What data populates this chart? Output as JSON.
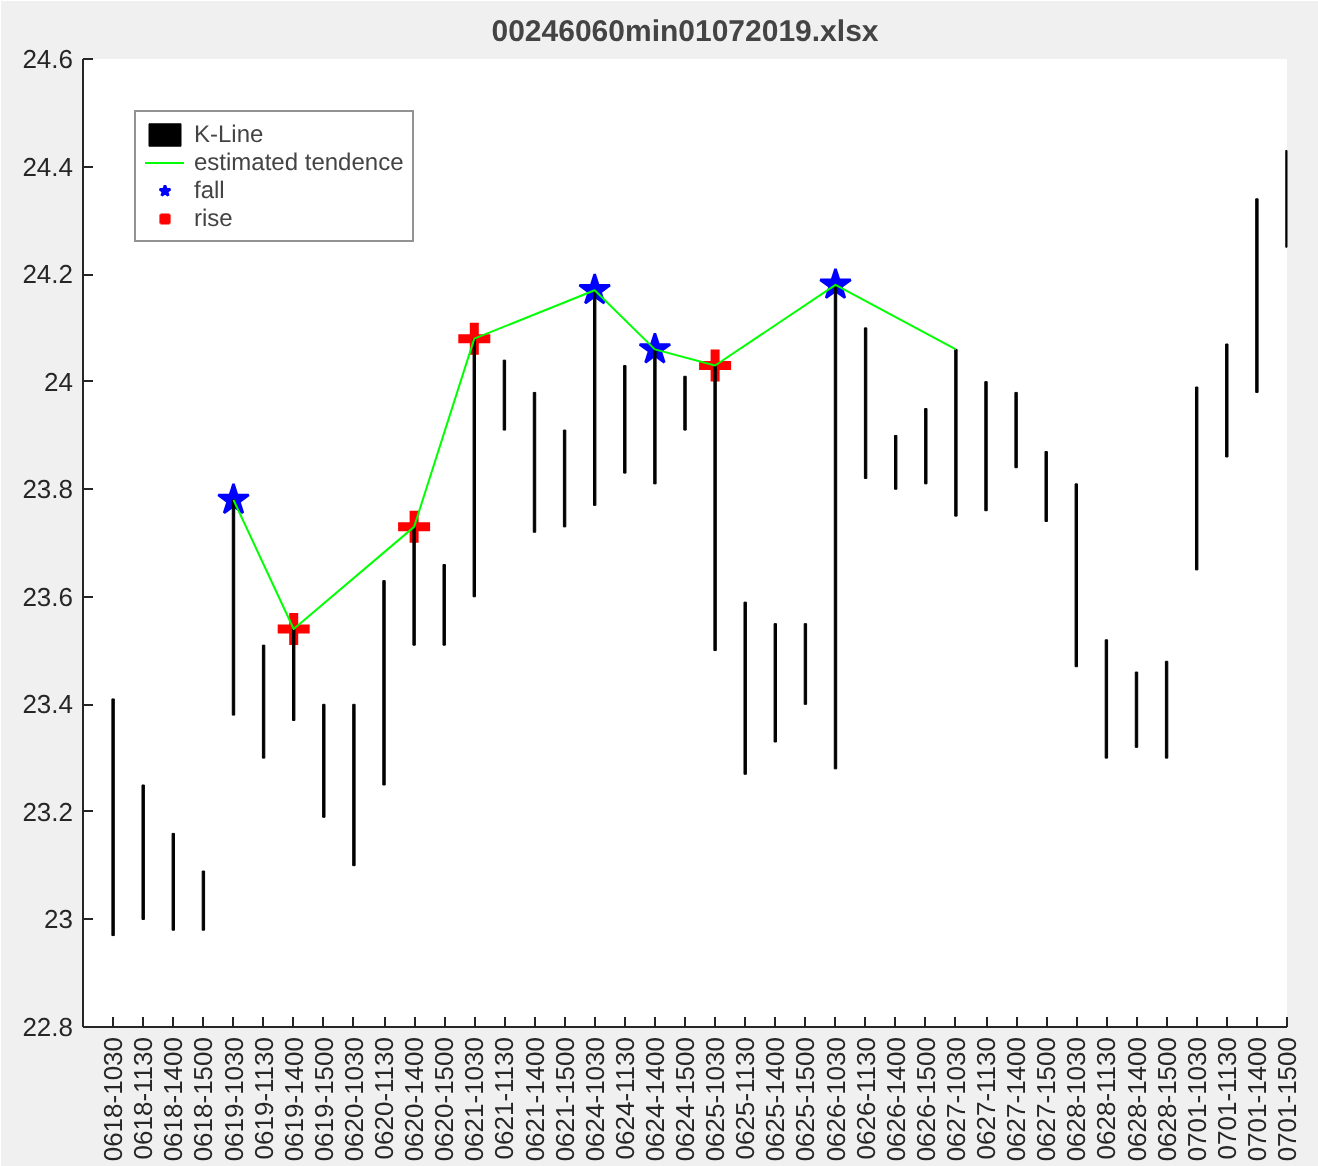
{
  "chart_data": {
    "type": "bar",
    "title": "00246060min01072019.xlsx",
    "categories": [
      "0618-1030",
      "0618-1130",
      "0618-1400",
      "0618-1500",
      "0619-1030",
      "0619-1130",
      "0619-1400",
      "0619-1500",
      "0620-1030",
      "0620-1130",
      "0620-1400",
      "0620-1500",
      "0621-1030",
      "0621-1130",
      "0621-1400",
      "0621-1500",
      "0624-1030",
      "0624-1130",
      "0624-1400",
      "0624-1500",
      "0625-1030",
      "0625-1130",
      "0625-1400",
      "0625-1500",
      "0626-1030",
      "0626-1130",
      "0626-1400",
      "0626-1500",
      "0627-1030",
      "0627-1130",
      "0627-1400",
      "0627-1500",
      "0628-1030",
      "0628-1130",
      "0628-1400",
      "0628-1500",
      "0701-1030",
      "0701-1130",
      "0701-1400",
      "0701-1500"
    ],
    "series": [
      {
        "name": "K-Line",
        "color": "#000000",
        "base": [
          22.97,
          23.0,
          22.98,
          22.98,
          23.38,
          23.3,
          23.37,
          23.19,
          23.1,
          23.25,
          23.51,
          23.51,
          23.6,
          23.91,
          23.72,
          23.73,
          23.77,
          23.83,
          23.81,
          23.91,
          23.5,
          23.27,
          23.33,
          23.4,
          23.28,
          23.82,
          23.8,
          23.81,
          23.75,
          23.76,
          23.84,
          23.74,
          23.47,
          23.3,
          23.32,
          23.3,
          23.65,
          23.86,
          23.98,
          24.25
        ],
        "values": [
          0.44,
          0.25,
          0.18,
          0.11,
          0.4,
          0.21,
          0.17,
          0.21,
          0.3,
          0.38,
          0.22,
          0.15,
          0.48,
          0.13,
          0.26,
          0.18,
          0.4,
          0.2,
          0.25,
          0.1,
          0.53,
          0.32,
          0.22,
          0.15,
          0.9,
          0.28,
          0.1,
          0.14,
          0.31,
          0.24,
          0.14,
          0.13,
          0.34,
          0.22,
          0.14,
          0.18,
          0.34,
          0.21,
          0.36,
          0.18
        ]
      },
      {
        "name": "estimated tendence",
        "type": "line",
        "color": "#00ff00",
        "marker": "none",
        "line_style": "solid",
        "x": [
          "0619-1030",
          "0619-1400",
          "0620-1400",
          "0621-1030",
          "0624-1030",
          "0624-1400",
          "0625-1030",
          "0626-1030",
          "0627-1030"
        ],
        "values": [
          23.78,
          23.54,
          23.73,
          24.08,
          24.17,
          24.06,
          24.03,
          24.18,
          24.06
        ]
      },
      {
        "name": "fall",
        "type": "scatter",
        "color": "#0000ff",
        "marker": "star",
        "x": [
          "0619-1030",
          "0624-1030",
          "0624-1400",
          "0626-1030"
        ],
        "values": [
          23.78,
          24.17,
          24.06,
          24.18
        ]
      },
      {
        "name": "rise",
        "type": "scatter",
        "color": "#ff0000",
        "marker": "cross",
        "x": [
          "0619-1400",
          "0620-1400",
          "0621-1030",
          "0625-1030"
        ],
        "values": [
          23.54,
          23.73,
          24.08,
          24.03
        ]
      }
    ],
    "ylim": [
      22.8,
      24.6
    ],
    "yticks": [
      22.8,
      23,
      23.2,
      23.4,
      23.6,
      23.8,
      24,
      24.2,
      24.4,
      24.6
    ],
    "grid": false,
    "legend": "top left"
  }
}
